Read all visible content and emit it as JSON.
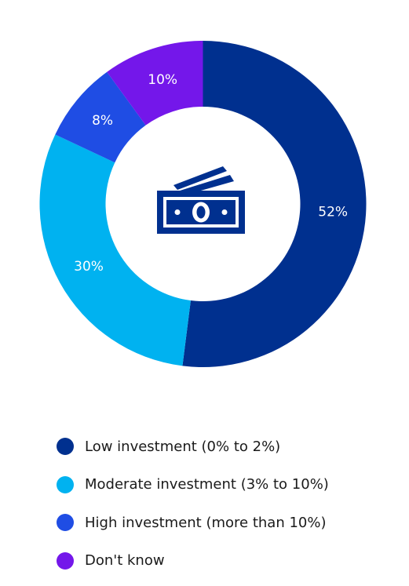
{
  "chart_data": {
    "type": "pie",
    "style": "donut",
    "center_icon": "money-bills-icon",
    "slices": [
      {
        "label": "Low investment (0% to 2%)",
        "value": 52,
        "display": "52%",
        "color": "#00308f"
      },
      {
        "label": "Moderate investment (3% to 10%)",
        "value": 30,
        "display": "30%",
        "color": "#00b2f0"
      },
      {
        "label": "High investment (more than 10%)",
        "value": 8,
        "display": "8%",
        "color": "#1f4de4"
      },
      {
        "label": "Don't know",
        "value": 10,
        "display": "10%",
        "color": "#7417ea"
      }
    ],
    "legend_position": "bottom"
  }
}
